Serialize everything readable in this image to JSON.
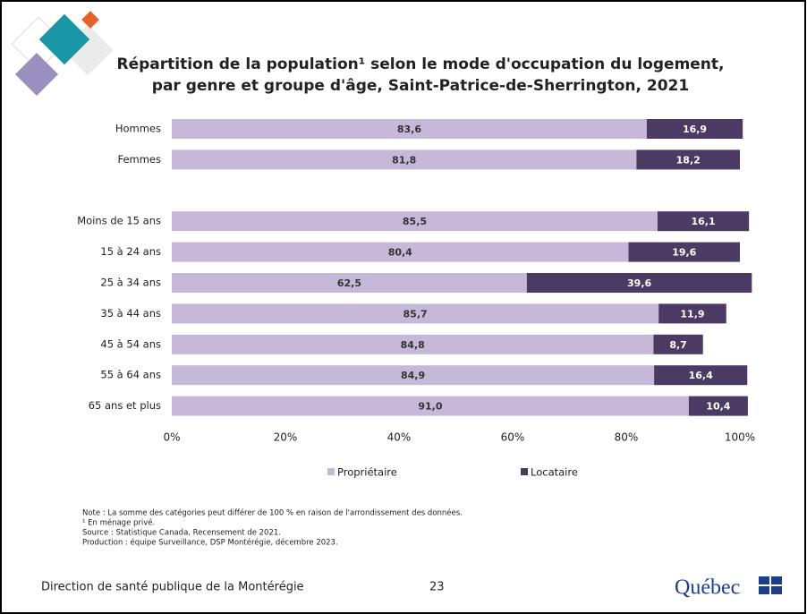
{
  "chart_data": {
    "type": "stacked-barh",
    "title": [
      "Répartition de la population¹ selon le mode d'occupation du logement,",
      "par genre et groupe d'âge, Saint-Patrice-de-Sherrington, 2021"
    ],
    "categories": [
      "Hommes",
      "Femmes",
      null,
      "Moins de 15 ans",
      "15 à 24 ans",
      "25 à 34 ans",
      "35 à 44 ans",
      "45 à 54 ans",
      "55 à 64 ans",
      "65 ans et plus"
    ],
    "series": [
      {
        "name": "Propriétaire",
        "color": "#c5b8d8",
        "values": [
          83.6,
          81.8,
          null,
          85.5,
          80.4,
          62.5,
          85.7,
          84.8,
          84.9,
          91.0
        ],
        "value_labels": [
          "83,6",
          "81,8",
          null,
          "85,5",
          "80,4",
          "62,5",
          "85,7",
          "84,8",
          "84,9",
          "91,0"
        ]
      },
      {
        "name": "Locataire",
        "color": "#4b3a63",
        "values": [
          16.9,
          18.2,
          null,
          16.1,
          19.6,
          39.6,
          11.9,
          8.7,
          16.4,
          10.4
        ],
        "value_labels": [
          "16,9",
          "18,2",
          null,
          "16,1",
          "19,6",
          "39,6",
          "11,9",
          "8,7",
          "16,4",
          "10,4"
        ]
      }
    ],
    "xlim": [
      0,
      100
    ],
    "xticks": [
      {
        "value": 0,
        "label": "0%"
      },
      {
        "value": 20,
        "label": "20%"
      },
      {
        "value": 40,
        "label": "40%"
      },
      {
        "value": 60,
        "label": "60%"
      },
      {
        "value": 80,
        "label": "80%"
      },
      {
        "value": 100,
        "label": "100%"
      }
    ],
    "legend": "bottom"
  },
  "notes": [
    "Note : La somme des catégories peut différer de 100 % en raison de l'arrondissement des données.",
    "¹ En ménage privé.",
    "Source : Statistique Canada, Recensement de 2021.",
    "Production : équipe Surveillance, DSP Montérégie, décembre 2023."
  ],
  "footer": {
    "organization": "Direction de santé publique de la Montérégie",
    "page": "23",
    "logo": "Québec"
  }
}
